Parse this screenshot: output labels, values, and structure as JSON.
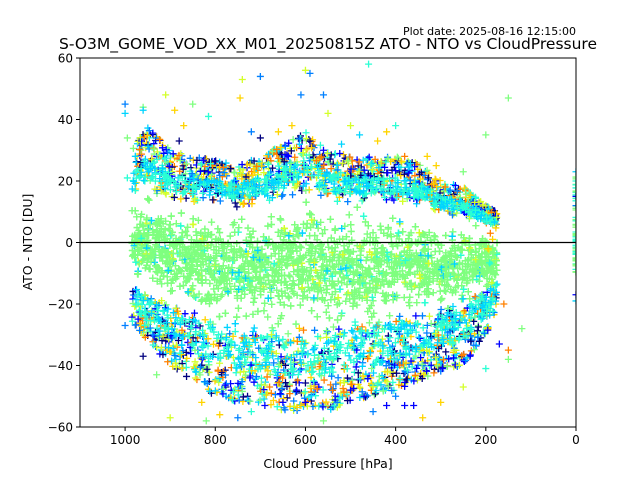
{
  "plot_date": "Plot date: 2025-08-16 12:15:00",
  "chart_data": {
    "type": "scatter",
    "title": "S-O3M_GOME_VOD_XX_M01_20250815Z ATO - NTO vs CloudPressure",
    "xlabel": "Cloud Pressure [hPa]",
    "ylabel": "ATO - NTO [DU]",
    "xlim": [
      1100,
      0
    ],
    "ylim": [
      -60,
      60
    ],
    "x_inverted": true,
    "xticks": [
      1000,
      800,
      600,
      400,
      200,
      0
    ],
    "yticks": [
      -60,
      -40,
      -20,
      0,
      20,
      40,
      60
    ],
    "ytick_labels": [
      "−60",
      "−40",
      "−20",
      "0",
      "20",
      "40",
      "60"
    ],
    "reference_line_y": 0,
    "marker": "+",
    "color_scale": [
      "#00007f",
      "#0000ff",
      "#0080ff",
      "#00d4ff",
      "#2affd4",
      "#7fff7f",
      "#d4ff2a",
      "#ffd400",
      "#ff8000"
    ],
    "dense_color": "#7fff7f",
    "envelope": [
      {
        "p": 985,
        "upper": 30,
        "lower": -26
      },
      {
        "p": 950,
        "upper": 38,
        "lower": -32
      },
      {
        "p": 900,
        "upper": 30,
        "lower": -40
      },
      {
        "p": 850,
        "upper": 28,
        "lower": -45
      },
      {
        "p": 800,
        "upper": 27,
        "lower": -50
      },
      {
        "p": 750,
        "upper": 25,
        "lower": -52
      },
      {
        "p": 700,
        "upper": 28,
        "lower": -52
      },
      {
        "p": 650,
        "upper": 32,
        "lower": -55
      },
      {
        "p": 600,
        "upper": 36,
        "lower": -55
      },
      {
        "p": 550,
        "upper": 30,
        "lower": -55
      },
      {
        "p": 500,
        "upper": 28,
        "lower": -52
      },
      {
        "p": 450,
        "upper": 28,
        "lower": -50
      },
      {
        "p": 400,
        "upper": 28,
        "lower": -48
      },
      {
        "p": 350,
        "upper": 26,
        "lower": -45
      },
      {
        "p": 300,
        "upper": 20,
        "lower": -42
      },
      {
        "p": 250,
        "upper": 18,
        "lower": -40
      },
      {
        "p": 200,
        "upper": 12,
        "lower": -30
      },
      {
        "p": 175,
        "upper": 10,
        "lower": -22
      }
    ],
    "outlier_points": [
      {
        "x": 1000,
        "y": 45,
        "c": "#0080ff"
      },
      {
        "x": 1000,
        "y": 42,
        "c": "#00d4ff"
      },
      {
        "x": 995,
        "y": 34,
        "c": "#7fff7f"
      },
      {
        "x": 995,
        "y": 21,
        "c": "#2affd4"
      },
      {
        "x": 960,
        "y": 44,
        "c": "#7fff7f"
      },
      {
        "x": 960,
        "y": 43,
        "c": "#00d4ff"
      },
      {
        "x": 910,
        "y": 48,
        "c": "#d4ff2a"
      },
      {
        "x": 890,
        "y": 43,
        "c": "#ffd400"
      },
      {
        "x": 870,
        "y": 38,
        "c": "#ffd400"
      },
      {
        "x": 880,
        "y": 33,
        "c": "#00007f"
      },
      {
        "x": 850,
        "y": 45,
        "c": "#7fff7f"
      },
      {
        "x": 815,
        "y": 41,
        "c": "#2affd4"
      },
      {
        "x": 740,
        "y": 53,
        "c": "#d4ff2a"
      },
      {
        "x": 745,
        "y": 47,
        "c": "#ffd400"
      },
      {
        "x": 700,
        "y": 54,
        "c": "#0080ff"
      },
      {
        "x": 720,
        "y": 36,
        "c": "#0080ff"
      },
      {
        "x": 700,
        "y": 34,
        "c": "#00007f"
      },
      {
        "x": 660,
        "y": 36,
        "c": "#ffd400"
      },
      {
        "x": 630,
        "y": 38,
        "c": "#ffd400"
      },
      {
        "x": 600,
        "y": 56,
        "c": "#d4ff2a"
      },
      {
        "x": 590,
        "y": 55,
        "c": "#0080ff"
      },
      {
        "x": 610,
        "y": 48,
        "c": "#0080ff"
      },
      {
        "x": 560,
        "y": 48,
        "c": "#0080ff"
      },
      {
        "x": 550,
        "y": 42,
        "c": "#d4ff2a"
      },
      {
        "x": 590,
        "y": 33,
        "c": "#00007f"
      },
      {
        "x": 560,
        "y": 30,
        "c": "#0000ff"
      },
      {
        "x": 520,
        "y": 32,
        "c": "#00d4ff"
      },
      {
        "x": 460,
        "y": 58,
        "c": "#2affd4"
      },
      {
        "x": 500,
        "y": 38,
        "c": "#d4ff2a"
      },
      {
        "x": 480,
        "y": 35,
        "c": "#00d4ff"
      },
      {
        "x": 440,
        "y": 33,
        "c": "#ffd400"
      },
      {
        "x": 420,
        "y": 36,
        "c": "#ffd400"
      },
      {
        "x": 400,
        "y": 38,
        "c": "#2affd4"
      },
      {
        "x": 380,
        "y": 28,
        "c": "#ff8000"
      },
      {
        "x": 330,
        "y": 28,
        "c": "#ffd400"
      },
      {
        "x": 310,
        "y": 25,
        "c": "#ffd400"
      },
      {
        "x": 290,
        "y": 18,
        "c": "#ff8000"
      },
      {
        "x": 250,
        "y": 23,
        "c": "#7fff7f"
      },
      {
        "x": 200,
        "y": 35,
        "c": "#7fff7f"
      },
      {
        "x": 150,
        "y": 47,
        "c": "#7fff7f"
      },
      {
        "x": 190,
        "y": 3,
        "c": "#ff8000"
      },
      {
        "x": 195,
        "y": -2,
        "c": "#ffd400"
      },
      {
        "x": 185,
        "y": 1,
        "c": "#ffd400"
      },
      {
        "x": 160,
        "y": -20,
        "c": "#ff8000"
      },
      {
        "x": 120,
        "y": -28,
        "c": "#7fff7f"
      },
      {
        "x": 150,
        "y": -35,
        "c": "#ff8000"
      },
      {
        "x": 170,
        "y": -33,
        "c": "#0000ff"
      },
      {
        "x": 150,
        "y": -38,
        "c": "#7fff7f"
      },
      {
        "x": 200,
        "y": -41,
        "c": "#2affd4"
      },
      {
        "x": 250,
        "y": -47,
        "c": "#d4ff2a"
      },
      {
        "x": 300,
        "y": -52,
        "c": "#ffd400"
      },
      {
        "x": 340,
        "y": -57,
        "c": "#ffd400"
      },
      {
        "x": 360,
        "y": -53,
        "c": "#0000ff"
      },
      {
        "x": 380,
        "y": -53,
        "c": "#0000ff"
      },
      {
        "x": 400,
        "y": -50,
        "c": "#0080ff"
      },
      {
        "x": 420,
        "y": -53,
        "c": "#0000ff"
      },
      {
        "x": 450,
        "y": -55,
        "c": "#0080ff"
      },
      {
        "x": 470,
        "y": -50,
        "c": "#0000ff"
      },
      {
        "x": 500,
        "y": -48,
        "c": "#0000ff"
      },
      {
        "x": 530,
        "y": -52,
        "c": "#0080ff"
      },
      {
        "x": 560,
        "y": -58,
        "c": "#7fff7f"
      },
      {
        "x": 600,
        "y": -52,
        "c": "#0000ff"
      },
      {
        "x": 620,
        "y": -48,
        "c": "#0000ff"
      },
      {
        "x": 650,
        "y": -52,
        "c": "#0000ff"
      },
      {
        "x": 690,
        "y": -53,
        "c": "#0000ff"
      },
      {
        "x": 720,
        "y": -55,
        "c": "#2affd4"
      },
      {
        "x": 750,
        "y": -57,
        "c": "#0080ff"
      },
      {
        "x": 790,
        "y": -56,
        "c": "#ffd400"
      },
      {
        "x": 820,
        "y": -58,
        "c": "#7fff7f"
      },
      {
        "x": 830,
        "y": -52,
        "c": "#ffd400"
      },
      {
        "x": 900,
        "y": -57,
        "c": "#d4ff2a"
      },
      {
        "x": 930,
        "y": -43,
        "c": "#7fff7f"
      },
      {
        "x": 960,
        "y": -37,
        "c": "#00007f"
      },
      {
        "x": 1000,
        "y": -27,
        "c": "#0080ff"
      },
      {
        "x": 0,
        "y": 15,
        "c": "#0000ff"
      },
      {
        "x": 0,
        "y": 12,
        "c": "#0080ff"
      },
      {
        "x": 0,
        "y": 23,
        "c": "#00d4ff"
      },
      {
        "x": 0,
        "y": 20,
        "c": "#2affd4"
      },
      {
        "x": 0,
        "y": -17,
        "c": "#0000ff"
      },
      {
        "x": 0,
        "y": -19,
        "c": "#00d4ff"
      }
    ]
  }
}
